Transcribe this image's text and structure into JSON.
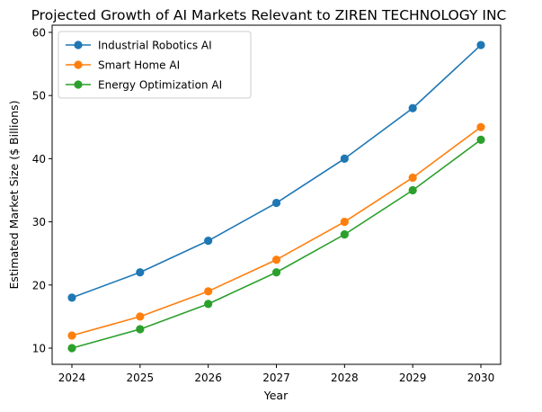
{
  "chart_data": {
    "type": "line",
    "title": "Projected Growth of AI Markets Relevant to ZIREN TECHNOLOGY INC",
    "xlabel": "Year",
    "ylabel": "Estimated Market Size ($ Billions)",
    "x": [
      2024,
      2025,
      2026,
      2027,
      2028,
      2029,
      2030
    ],
    "xticks": [
      "2024",
      "2025",
      "2026",
      "2027",
      "2028",
      "2029",
      "2030"
    ],
    "yticks": [
      10,
      20,
      30,
      40,
      50,
      60
    ],
    "ylim": [
      7,
      62
    ],
    "grid": false,
    "legend": "upper-left",
    "series": [
      {
        "name": "Industrial Robotics AI",
        "color": "#1f77b4",
        "values": [
          18,
          22,
          27,
          33,
          40,
          48,
          58
        ]
      },
      {
        "name": "Smart Home AI",
        "color": "#ff7f0e",
        "values": [
          12,
          15,
          19,
          24,
          30,
          37,
          45
        ]
      },
      {
        "name": "Energy Optimization AI",
        "color": "#2ca02c",
        "values": [
          10,
          13,
          17,
          22,
          28,
          35,
          43
        ]
      }
    ]
  }
}
